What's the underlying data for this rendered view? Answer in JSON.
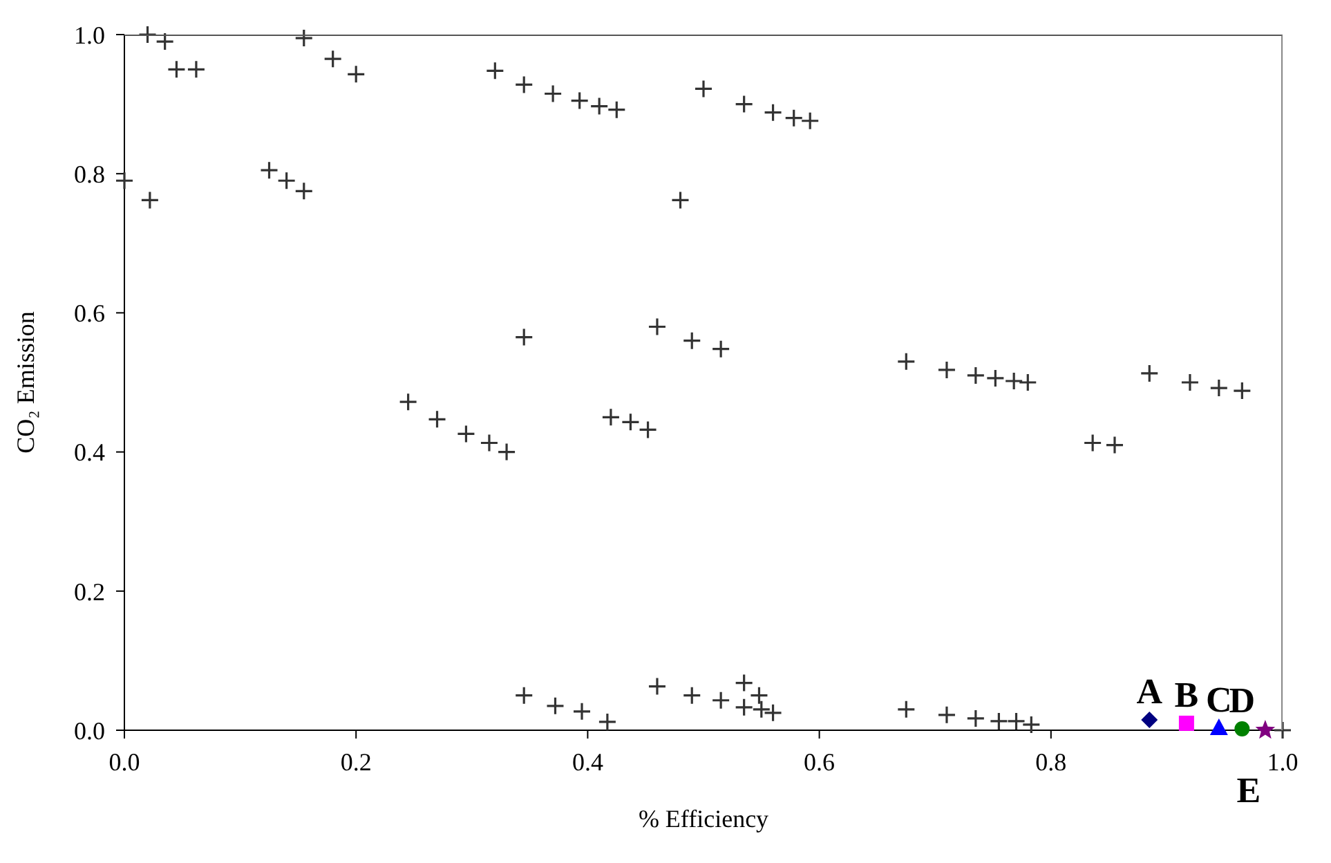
{
  "chart_data": {
    "type": "scatter",
    "xlabel": "% Efficiency",
    "ylabel": "CO₂ Emission",
    "xlim": [
      0,
      1
    ],
    "ylim": [
      0,
      1
    ],
    "xticks": [
      {
        "value": 0,
        "label": "0.0"
      },
      0.2,
      0.4,
      0.6,
      0.8,
      {
        "value": 1,
        "label": "1.0"
      }
    ],
    "yticks": [
      {
        "value": 0,
        "label": "0.0"
      },
      0.2,
      0.4,
      0.6,
      0.8,
      {
        "value": 1,
        "label": "1.0"
      }
    ],
    "grid": false,
    "legend": false,
    "marker": "cross",
    "series": [
      {
        "color": "#333333",
        "x": [
          0.02,
          0.035,
          0.045,
          0.062,
          0.155,
          0.18,
          0.2,
          0.32,
          0.345,
          0.37,
          0.393,
          0.41,
          0.425,
          0.5,
          0.535,
          0.56,
          0.578,
          0.592,
          0.0,
          0.022,
          0.125,
          0.14,
          0.155,
          0.48,
          0.345,
          0.245,
          0.27,
          0.295,
          0.315,
          0.33,
          0.42,
          0.437,
          0.452,
          0.46,
          0.49,
          0.515,
          0.675,
          0.71,
          0.735,
          0.752,
          0.768,
          0.78,
          0.885,
          0.92,
          0.945,
          0.965,
          0.836,
          0.855,
          0.345,
          0.372,
          0.395,
          0.417,
          0.46,
          0.49,
          0.515,
          0.535,
          0.535,
          0.548,
          0.55,
          0.56,
          0.675,
          0.71,
          0.735,
          0.755,
          0.77,
          0.783,
          1.0
        ],
        "values": [
          1.0,
          0.99,
          0.95,
          0.95,
          0.995,
          0.965,
          0.943,
          0.948,
          0.928,
          0.915,
          0.905,
          0.897,
          0.892,
          0.922,
          0.9,
          0.888,
          0.88,
          0.876,
          0.79,
          0.762,
          0.805,
          0.79,
          0.775,
          0.762,
          0.565,
          0.472,
          0.447,
          0.426,
          0.413,
          0.4,
          0.45,
          0.443,
          0.432,
          0.58,
          0.56,
          0.548,
          0.53,
          0.518,
          0.51,
          0.506,
          0.502,
          0.5,
          0.513,
          0.5,
          0.492,
          0.488,
          0.413,
          0.41,
          0.05,
          0.035,
          0.027,
          0.012,
          0.063,
          0.05,
          0.043,
          0.068,
          0.033,
          0.05,
          0.03,
          0.025,
          0.03,
          0.022,
          0.017,
          0.013,
          0.013,
          0.008,
          0.0
        ]
      },
      {
        "name": "A",
        "color": "#000080",
        "marker": "diamond",
        "x": [
          0.885
        ],
        "values": [
          0.015
        ]
      },
      {
        "name": "B",
        "color": "#ff00ff",
        "marker": "square",
        "x": [
          0.917
        ],
        "values": [
          0.01
        ]
      },
      {
        "name": "C",
        "color": "#0000ff",
        "marker": "triangle",
        "x": [
          0.945
        ],
        "values": [
          0.003
        ]
      },
      {
        "name": "D",
        "color": "#008000",
        "marker": "circle",
        "x": [
          0.965
        ],
        "values": [
          0.002
        ]
      },
      {
        "name": "E",
        "color": "#800080",
        "marker": "star",
        "x": [
          0.985
        ],
        "values": [
          0.0
        ]
      }
    ]
  }
}
